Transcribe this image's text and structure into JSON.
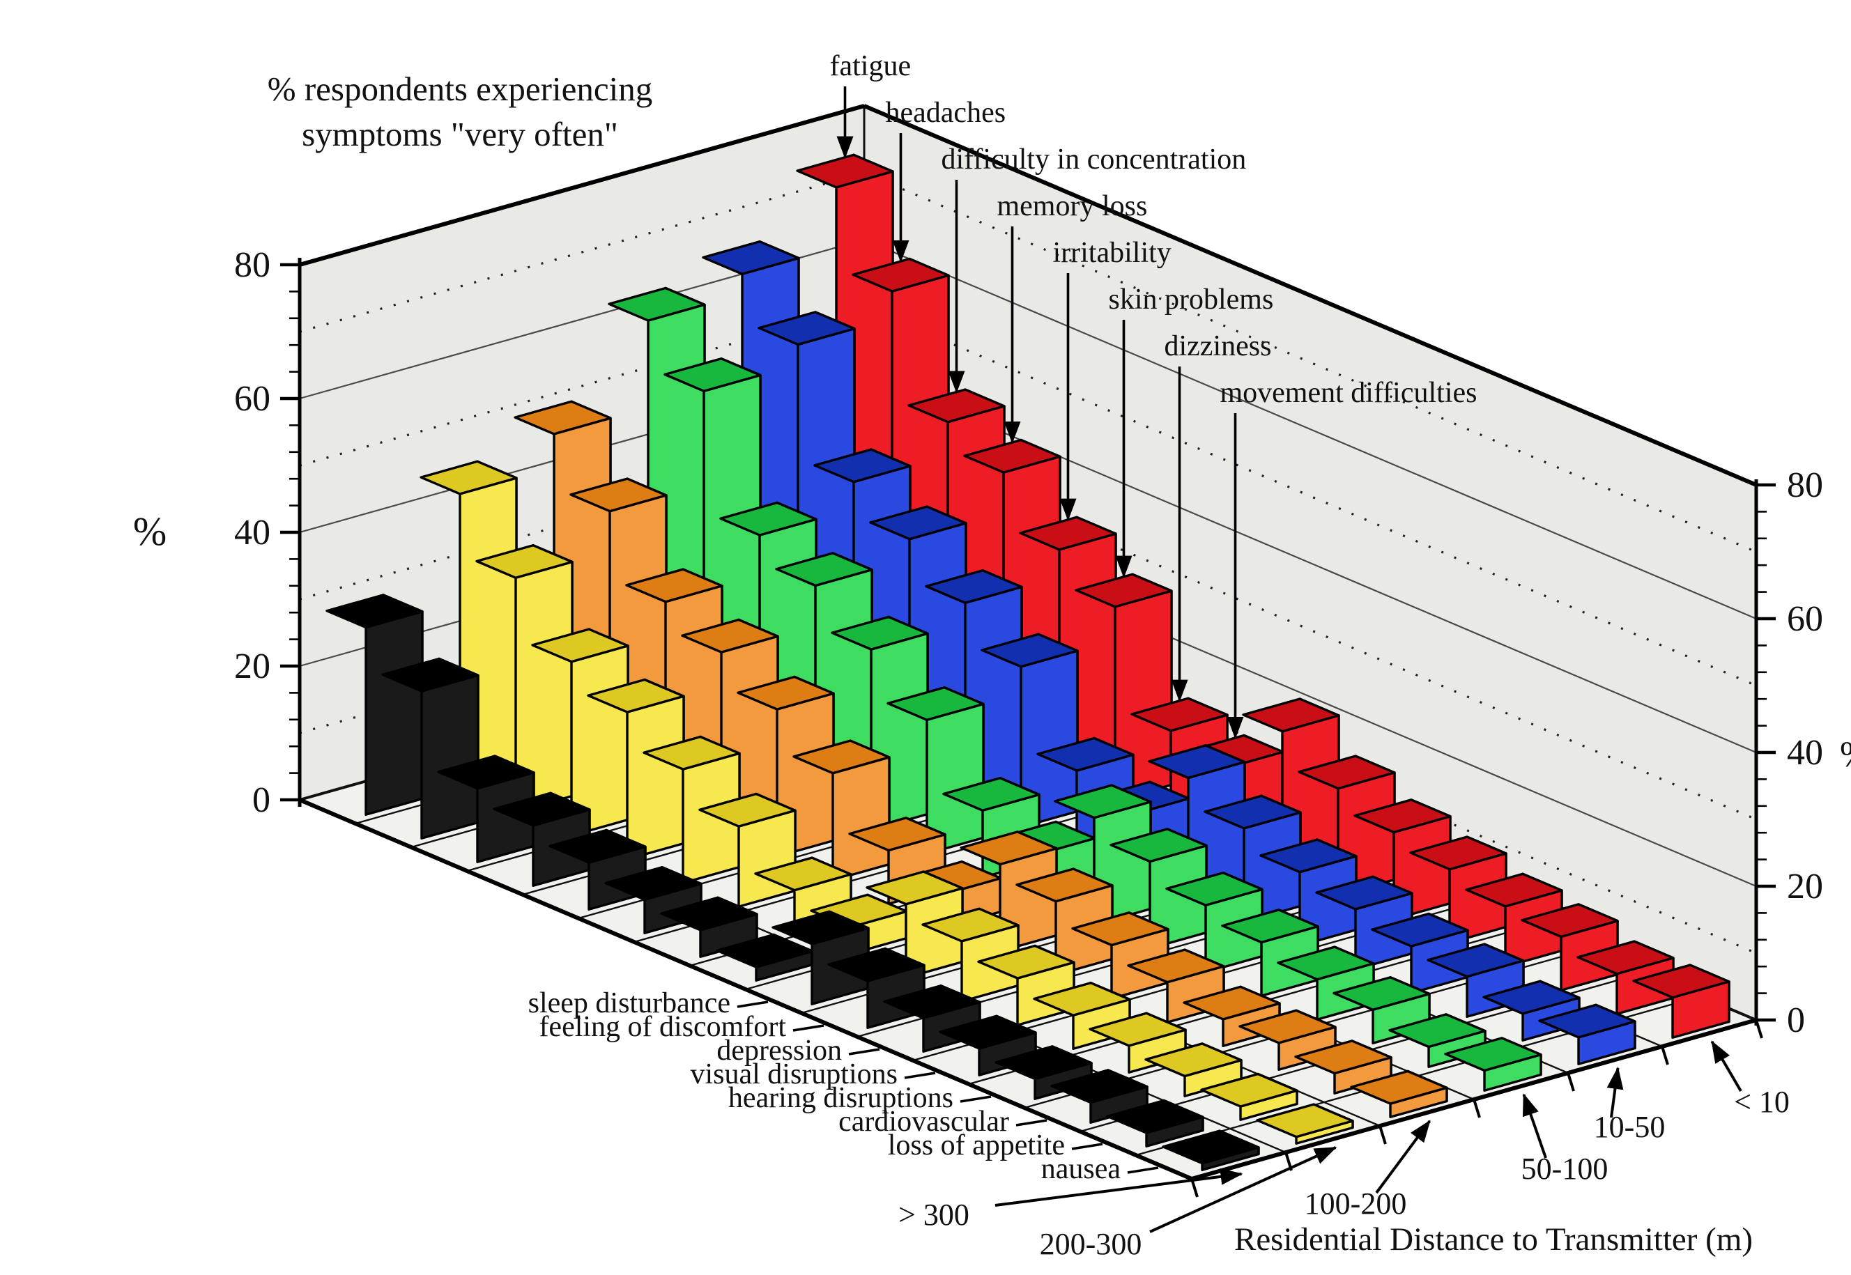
{
  "chart_data": {
    "type": "bar3d",
    "title_line1": "% respondents  experiencing",
    "title_line2": "symptoms  \"very often\"",
    "x_axis_title": "Residential Distance to Transmitter (m)",
    "y_axis": {
      "label": "%",
      "ticks": [
        0,
        20,
        40,
        60,
        80
      ],
      "minor_step": 4,
      "max": 80,
      "grid_solid_every": 20,
      "grid_dotted_every": 10,
      "left_axis": true,
      "right_axis": true
    },
    "distance_bands": [
      "> 300",
      "200-300",
      "100-200",
      "50-100",
      "10-50",
      "< 10"
    ],
    "band_colors": [
      {
        "band": "> 300",
        "main": "#1a1a1a",
        "light": "#bfbfbf",
        "dark": "#000000"
      },
      {
        "band": "200-300",
        "main": "#f6e84e",
        "light": "#fbf5ad",
        "dark": "#ddc922"
      },
      {
        "band": "100-200",
        "main": "#f49a3e",
        "light": "#f9cb97",
        "dark": "#de7d14"
      },
      {
        "band": "50-100",
        "main": "#3edd62",
        "light": "#abf3c0",
        "dark": "#18b83e"
      },
      {
        "band": "10-50",
        "main": "#2a49e0",
        "light": "#aab5f2",
        "dark": "#122fb0"
      },
      {
        "band": "< 10",
        "main": "#ee1c25",
        "light": "#f8aeae",
        "dark": "#c90e16"
      }
    ],
    "series": [
      {
        "name": "fatigue",
        "label_position": "top-arrow",
        "values": [
          28,
          44,
          49,
          62,
          65,
          74
        ]
      },
      {
        "name": "headaches",
        "label_position": "top-arrow",
        "values": [
          22,
          35,
          41,
          55,
          58,
          62
        ]
      },
      {
        "name": "difficulty in concentration",
        "label_position": "top-arrow",
        "values": [
          11,
          26,
          31,
          37,
          41,
          46
        ]
      },
      {
        "name": "memory loss",
        "label_position": "top-arrow",
        "values": [
          9,
          22,
          27,
          33,
          36,
          42
        ]
      },
      {
        "name": "irritability",
        "label_position": "top-arrow",
        "values": [
          7,
          17,
          22,
          27,
          30,
          34
        ]
      },
      {
        "name": "skin problems",
        "label_position": "top-arrow",
        "values": [
          5,
          12,
          16,
          20,
          24,
          29
        ]
      },
      {
        "name": "dizziness",
        "label_position": "top-arrow",
        "values": [
          4,
          6,
          8,
          10,
          12,
          14
        ]
      },
      {
        "name": "movement difficulties",
        "label_position": "top-arrow",
        "values": [
          2,
          4,
          5,
          7,
          9,
          12
        ]
      },
      {
        "name": "sleep disturbance",
        "label_position": "left-axis",
        "values": [
          9,
          11,
          13,
          16,
          18,
          21
        ]
      },
      {
        "name": "feeling of discomfort",
        "label_position": "left-axis",
        "values": [
          7,
          9,
          11,
          13,
          14,
          16
        ]
      },
      {
        "name": "depression",
        "label_position": "left-axis",
        "values": [
          5,
          7,
          8,
          10,
          11,
          13
        ]
      },
      {
        "name": "visual disruptions",
        "label_position": "left-axis",
        "values": [
          4,
          5,
          6,
          8,
          9,
          11
        ]
      },
      {
        "name": "hearing disruptions",
        "label_position": "left-axis",
        "values": [
          3,
          4,
          4,
          6,
          7,
          9
        ]
      },
      {
        "name": "cardiovascular",
        "label_position": "left-axis",
        "values": [
          3,
          3,
          4,
          5,
          6,
          8
        ]
      },
      {
        "name": "loss of appetite",
        "label_position": "left-axis",
        "values": [
          2,
          2,
          3,
          3,
          4,
          6
        ]
      },
      {
        "name": "nausea",
        "label_position": "left-axis",
        "values": [
          1,
          1,
          2,
          3,
          4,
          6
        ]
      }
    ]
  }
}
